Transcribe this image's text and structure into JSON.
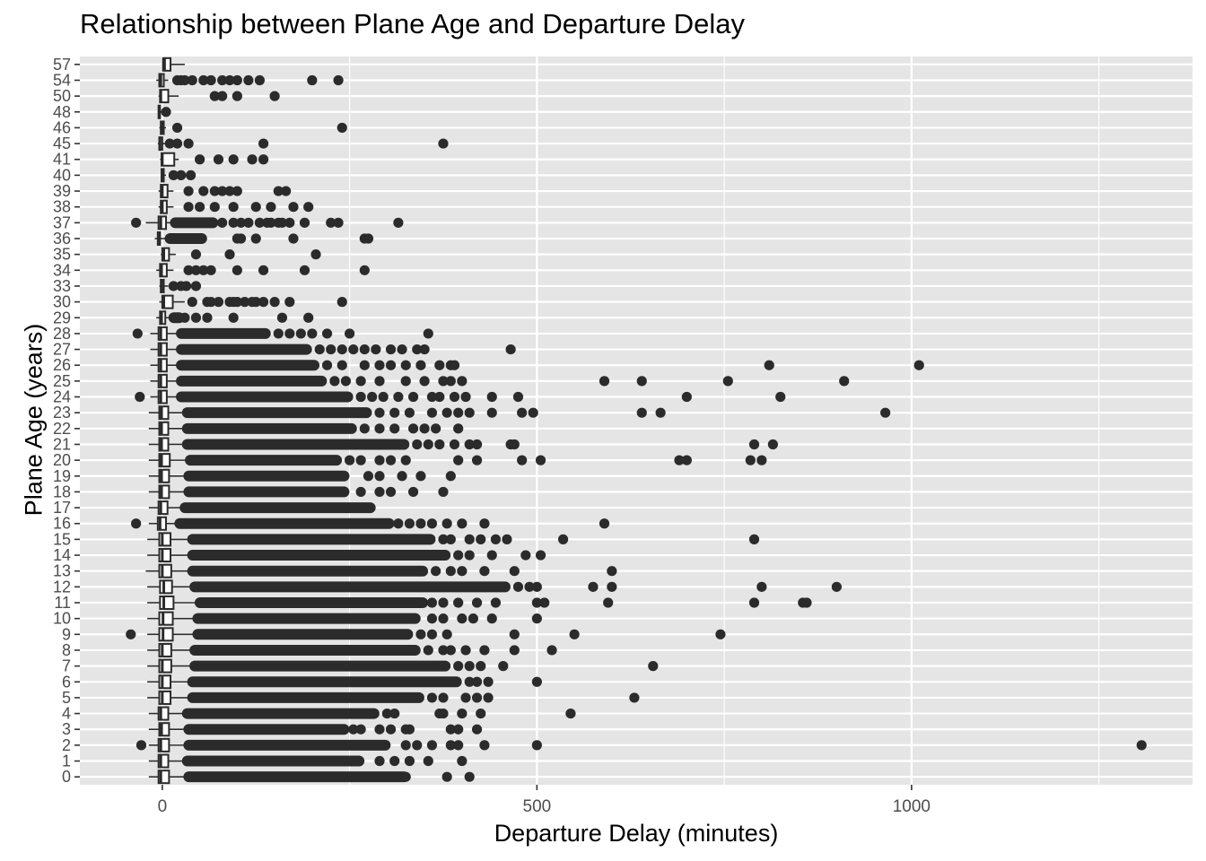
{
  "chart_data": {
    "type": "boxplot",
    "title": "Relationship between Plane Age and Departure Delay",
    "xlabel": "Departure Delay (minutes)",
    "ylabel": "Plane Age (years)",
    "orientation": "horizontal",
    "xlim": [
      -110,
      1375
    ],
    "x_ticks": [
      0,
      500,
      1000
    ],
    "categories": [
      "0",
      "1",
      "2",
      "3",
      "4",
      "5",
      "6",
      "7",
      "8",
      "9",
      "10",
      "11",
      "12",
      "13",
      "14",
      "15",
      "16",
      "17",
      "18",
      "19",
      "20",
      "21",
      "22",
      "23",
      "24",
      "25",
      "26",
      "27",
      "28",
      "29",
      "30",
      "33",
      "34",
      "35",
      "36",
      "37",
      "38",
      "39",
      "40",
      "41",
      "45",
      "46",
      "48",
      "50",
      "54",
      "57"
    ],
    "grid": true,
    "background": "#e5e5e5",
    "point_color": "#2b2b2b",
    "box_fill": "#ffffff",
    "boxes": [
      {
        "age": "0",
        "lw": -18,
        "q1": -5,
        "med": -2,
        "q3": 9,
        "uw": 30,
        "dense": 325,
        "out": [
          310,
          325,
          380,
          410
        ]
      },
      {
        "age": "1",
        "lw": -18,
        "q1": -5,
        "med": -2,
        "q3": 8,
        "uw": 28,
        "dense": 265,
        "out": [
          290,
          310,
          330,
          355,
          400
        ]
      },
      {
        "age": "2",
        "lw": -18,
        "q1": -5,
        "med": -2,
        "q3": 9,
        "uw": 30,
        "dense": 300,
        "out": [
          -28,
          325,
          340,
          360,
          385,
          395,
          430,
          500,
          1307
        ]
      },
      {
        "age": "3",
        "lw": -18,
        "q1": -4,
        "med": -1,
        "q3": 9,
        "uw": 30,
        "dense": 245,
        "out": [
          255,
          265,
          290,
          305,
          325,
          330,
          385,
          395,
          420
        ]
      },
      {
        "age": "4",
        "lw": -18,
        "q1": -5,
        "med": -2,
        "q3": 8,
        "uw": 28,
        "dense": 285,
        "out": [
          300,
          310,
          370,
          375,
          400,
          425,
          545
        ]
      },
      {
        "age": "5",
        "lw": -20,
        "q1": -4,
        "med": 0,
        "q3": 11,
        "uw": 35,
        "dense": 345,
        "out": [
          360,
          375,
          405,
          420,
          435,
          630
        ]
      },
      {
        "age": "6",
        "lw": -20,
        "q1": -4,
        "med": 0,
        "q3": 11,
        "uw": 35,
        "dense": 395,
        "out": [
          410,
          420,
          435,
          500
        ]
      },
      {
        "age": "7",
        "lw": -20,
        "q1": -4,
        "med": 0,
        "q3": 12,
        "uw": 38,
        "dense": 380,
        "out": [
          395,
          410,
          425,
          455,
          655
        ]
      },
      {
        "age": "8",
        "lw": -20,
        "q1": -4,
        "med": 0,
        "q3": 12,
        "uw": 38,
        "dense": 340,
        "out": [
          355,
          375,
          385,
          405,
          430,
          470,
          520
        ]
      },
      {
        "age": "9",
        "lw": -20,
        "q1": -4,
        "med": 1,
        "q3": 14,
        "uw": 42,
        "dense": 330,
        "out": [
          -42,
          345,
          360,
          380,
          470,
          550,
          745
        ]
      },
      {
        "age": "10",
        "lw": -20,
        "q1": -4,
        "med": 1,
        "q3": 14,
        "uw": 42,
        "dense": 340,
        "out": [
          360,
          375,
          400,
          415,
          440,
          500
        ]
      },
      {
        "age": "11",
        "lw": -20,
        "q1": -3,
        "med": 2,
        "q3": 15,
        "uw": 45,
        "dense": 350,
        "out": [
          360,
          375,
          395,
          420,
          445,
          500,
          510,
          595,
          790,
          855,
          860
        ]
      },
      {
        "age": "12",
        "lw": -20,
        "q1": -3,
        "med": 2,
        "q3": 13,
        "uw": 38,
        "dense": 460,
        "out": [
          475,
          490,
          500,
          575,
          600,
          800,
          900
        ]
      },
      {
        "age": "13",
        "lw": -22,
        "q1": -4,
        "med": 0,
        "q3": 12,
        "uw": 35,
        "dense": 350,
        "out": [
          365,
          385,
          400,
          430,
          470,
          600
        ]
      },
      {
        "age": "14",
        "lw": -20,
        "q1": -4,
        "med": 0,
        "q3": 11,
        "uw": 35,
        "dense": 380,
        "out": [
          395,
          410,
          440,
          485,
          505
        ]
      },
      {
        "age": "15",
        "lw": -20,
        "q1": -4,
        "med": 0,
        "q3": 11,
        "uw": 35,
        "dense": 360,
        "out": [
          375,
          385,
          410,
          425,
          445,
          460,
          535,
          790
        ]
      },
      {
        "age": "16",
        "lw": -18,
        "q1": -6,
        "med": -3,
        "q3": 5,
        "uw": 18,
        "dense": 305,
        "out": [
          -35,
          315,
          330,
          345,
          360,
          380,
          400,
          430,
          590
        ]
      },
      {
        "age": "17",
        "lw": -18,
        "q1": -5,
        "med": -2,
        "q3": 7,
        "uw": 25,
        "dense": 280,
        "out": []
      },
      {
        "age": "18",
        "lw": -18,
        "q1": -4,
        "med": -1,
        "q3": 9,
        "uw": 30,
        "dense": 245,
        "out": [
          265,
          290,
          305,
          335,
          375
        ]
      },
      {
        "age": "19",
        "lw": -18,
        "q1": -4,
        "med": -1,
        "q3": 9,
        "uw": 30,
        "dense": 245,
        "out": [
          275,
          290,
          320,
          345,
          385
        ]
      },
      {
        "age": "20",
        "lw": -18,
        "q1": -4,
        "med": -1,
        "q3": 10,
        "uw": 32,
        "dense": 235,
        "out": [
          250,
          265,
          290,
          305,
          325,
          395,
          420,
          480,
          505,
          690,
          700,
          785,
          800
        ]
      },
      {
        "age": "21",
        "lw": -18,
        "q1": -4,
        "med": -1,
        "q3": 8,
        "uw": 28,
        "dense": 325,
        "out": [
          340,
          355,
          370,
          390,
          410,
          420,
          465,
          470,
          790,
          815
        ]
      },
      {
        "age": "22",
        "lw": -18,
        "q1": -4,
        "med": -1,
        "q3": 8,
        "uw": 28,
        "dense": 255,
        "out": [
          270,
          290,
          310,
          335,
          350,
          365,
          395
        ]
      },
      {
        "age": "23",
        "lw": -18,
        "q1": -4,
        "med": -1,
        "q3": 8,
        "uw": 28,
        "dense": 275,
        "out": [
          290,
          310,
          330,
          360,
          380,
          395,
          410,
          440,
          480,
          495,
          640,
          665,
          965
        ]
      },
      {
        "age": "24",
        "lw": -16,
        "q1": -5,
        "med": -2,
        "q3": 6,
        "uw": 20,
        "dense": 250,
        "out": [
          -30,
          265,
          280,
          295,
          315,
          335,
          360,
          370,
          390,
          405,
          440,
          475,
          700,
          825
        ]
      },
      {
        "age": "25",
        "lw": -16,
        "q1": -5,
        "med": -2,
        "q3": 6,
        "uw": 20,
        "dense": 215,
        "out": [
          230,
          245,
          265,
          290,
          325,
          350,
          375,
          385,
          400,
          590,
          640,
          755,
          910
        ]
      },
      {
        "age": "26",
        "lw": -16,
        "q1": -5,
        "med": -2,
        "q3": 6,
        "uw": 20,
        "dense": 205,
        "out": [
          220,
          240,
          270,
          290,
          305,
          325,
          345,
          370,
          385,
          390,
          810,
          1010
        ]
      },
      {
        "age": "27",
        "lw": -16,
        "q1": -5,
        "med": -2,
        "q3": 6,
        "uw": 20,
        "dense": 195,
        "out": [
          210,
          225,
          240,
          255,
          270,
          285,
          305,
          320,
          340,
          350,
          465
        ]
      },
      {
        "age": "28",
        "lw": -16,
        "q1": -5,
        "med": -2,
        "q3": 6,
        "uw": 20,
        "dense": 140,
        "out": [
          -33,
          155,
          170,
          185,
          200,
          220,
          250,
          355
        ]
      },
      {
        "age": "29",
        "lw": -8,
        "q1": -3,
        "med": -1,
        "q3": 4,
        "uw": 10,
        "dense": 25,
        "out": [
          30,
          45,
          60,
          95,
          160,
          195
        ]
      },
      {
        "age": "30",
        "lw": -4,
        "q1": 0,
        "med": 2,
        "q3": 14,
        "uw": 30,
        "dense": 0,
        "out": [
          40,
          60,
          65,
          75,
          90,
          95,
          100,
          110,
          120,
          125,
          135,
          150,
          170,
          240
        ]
      },
      {
        "age": "33",
        "lw": -4,
        "q1": -2,
        "med": -1,
        "q3": 2,
        "uw": 8,
        "dense": 0,
        "out": [
          15,
          25,
          32,
          45
        ]
      },
      {
        "age": "34",
        "lw": -8,
        "q1": -3,
        "med": -1,
        "q3": 6,
        "uw": 15,
        "dense": 0,
        "out": [
          35,
          45,
          55,
          65,
          100,
          135,
          190,
          270
        ]
      },
      {
        "age": "35",
        "lw": -2,
        "q1": 0,
        "med": 2,
        "q3": 9,
        "uw": 18,
        "dense": 0,
        "out": [
          45,
          90,
          205
        ]
      },
      {
        "age": "36",
        "lw": -10,
        "q1": -6,
        "med": -5,
        "q3": -3,
        "uw": 5,
        "dense": 55,
        "out": [
          100,
          105,
          125,
          175,
          270,
          275
        ]
      },
      {
        "age": "37",
        "lw": -22,
        "q1": -5,
        "med": -2,
        "q3": 5,
        "uw": 12,
        "dense": 70,
        "out": [
          -35,
          80,
          95,
          105,
          115,
          130,
          140,
          145,
          155,
          160,
          170,
          190,
          225,
          235,
          315
        ]
      },
      {
        "age": "38",
        "lw": -5,
        "q1": -2,
        "med": 0,
        "q3": 6,
        "uw": 15,
        "dense": 0,
        "out": [
          35,
          50,
          70,
          95,
          125,
          145,
          175,
          195
        ]
      },
      {
        "age": "39",
        "lw": -5,
        "q1": -2,
        "med": 0,
        "q3": 7,
        "uw": 15,
        "dense": 0,
        "out": [
          35,
          55,
          70,
          80,
          90,
          100,
          155,
          165
        ]
      },
      {
        "age": "40",
        "lw": -2,
        "q1": -1,
        "med": 0,
        "q3": 2,
        "uw": 5,
        "dense": 0,
        "out": [
          15,
          25,
          38
        ]
      },
      {
        "age": "41",
        "lw": -3,
        "q1": -1,
        "med": 0,
        "q3": 16,
        "uw": 22,
        "dense": 0,
        "out": [
          50,
          75,
          95,
          120,
          135
        ]
      },
      {
        "age": "45",
        "lw": -6,
        "q1": -4,
        "med": -3,
        "q3": 0,
        "uw": 4,
        "dense": 0,
        "out": [
          10,
          20,
          35,
          135,
          375
        ]
      },
      {
        "age": "46",
        "lw": -4,
        "q1": -2,
        "med": 0,
        "q3": 2,
        "uw": 5,
        "dense": 0,
        "out": [
          20,
          240
        ]
      },
      {
        "age": "48",
        "lw": -6,
        "q1": -5,
        "med": -4,
        "q3": -3,
        "uw": 0,
        "dense": 0,
        "out": [
          5
        ]
      },
      {
        "age": "50",
        "lw": -5,
        "q1": -3,
        "med": -2,
        "q3": 8,
        "uw": 22,
        "dense": 0,
        "out": [
          70,
          80,
          100,
          150
        ]
      },
      {
        "age": "54",
        "lw": -8,
        "q1": -4,
        "med": -2,
        "q3": 2,
        "uw": 8,
        "dense": 0,
        "out": [
          20,
          25,
          30,
          40,
          55,
          65,
          80,
          90,
          100,
          115,
          130,
          200,
          235
        ]
      },
      {
        "age": "57",
        "lw": 0,
        "q1": 1,
        "med": 3,
        "q3": 11,
        "uw": 30,
        "dense": 0,
        "out": []
      }
    ]
  }
}
